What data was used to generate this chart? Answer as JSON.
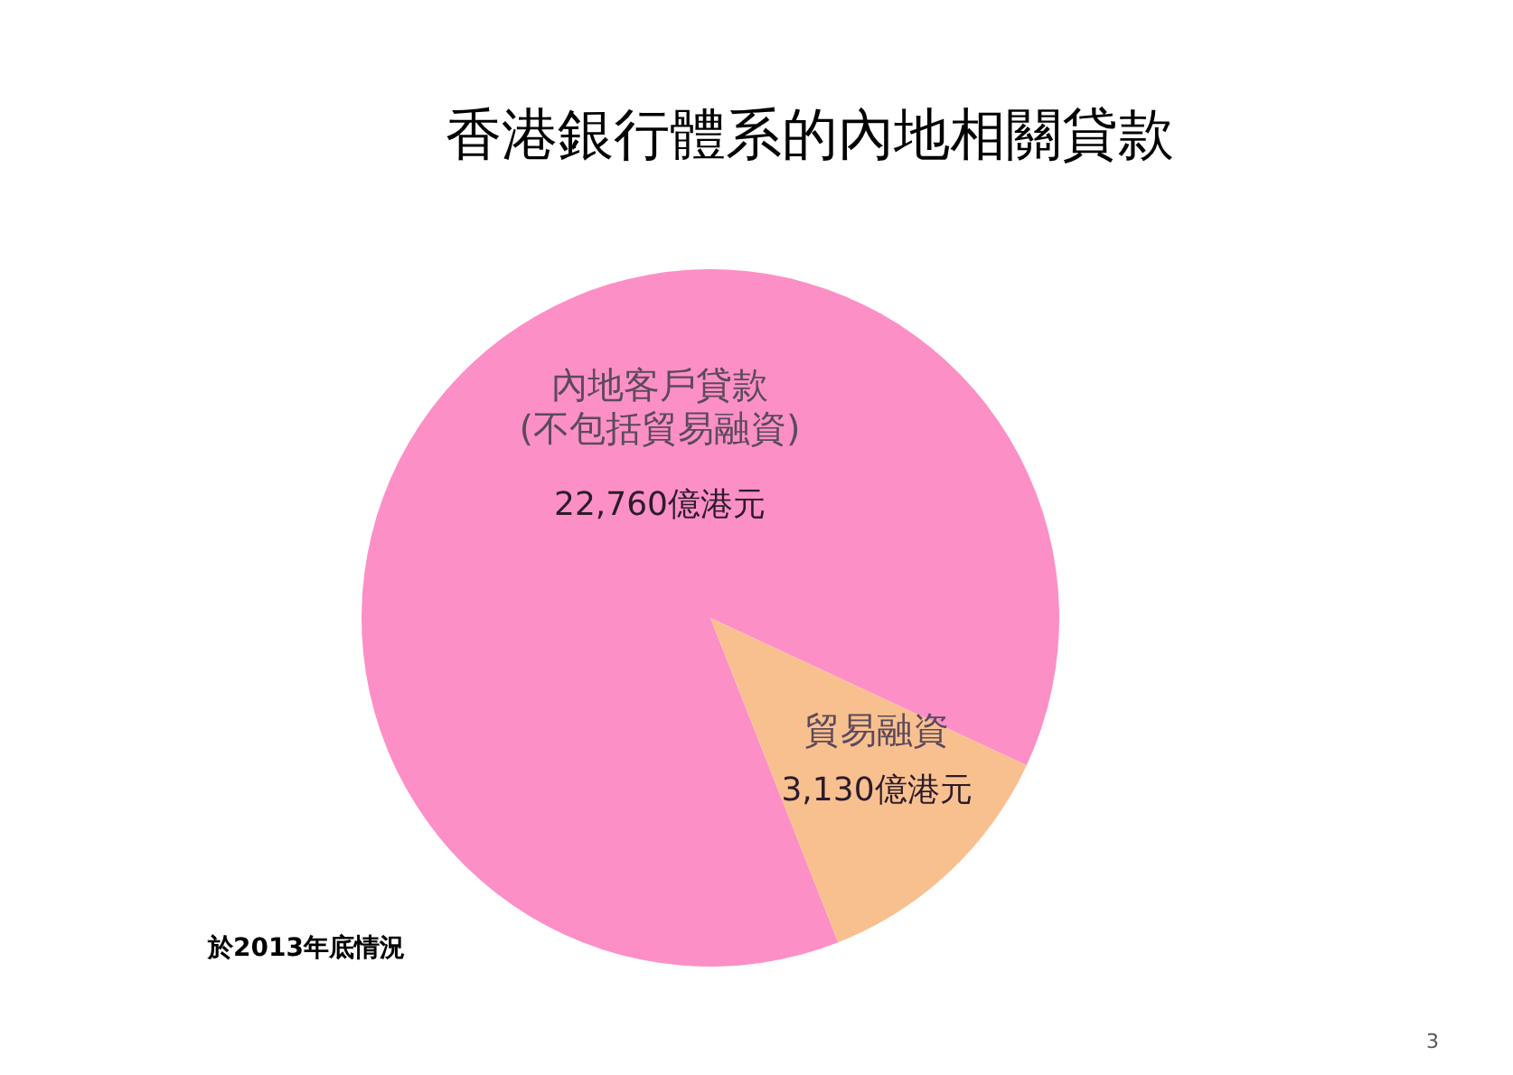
{
  "chart_data": {
    "type": "pie",
    "title": "香港銀行體系的內地相關貸款",
    "categories": [
      "內地客戶貸款\n(不包括貿易融資)",
      "貿易融資"
    ],
    "values": [
      22760,
      3130
    ],
    "value_labels": [
      "22,760億港元",
      "3,130億港元"
    ],
    "colors": [
      "#fd8fc7",
      "#f9c08f"
    ],
    "legend": false,
    "annotations": [
      "於2013年底情況",
      "3"
    ]
  }
}
